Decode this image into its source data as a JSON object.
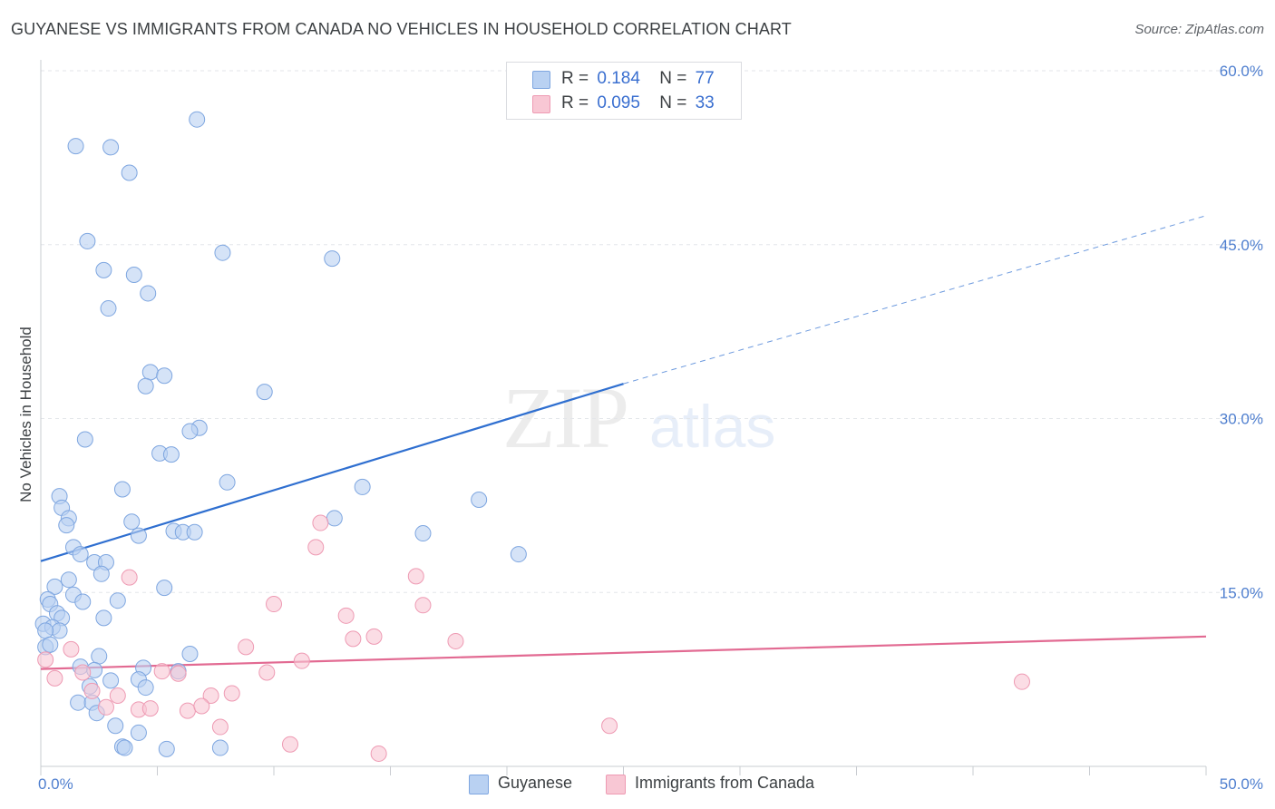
{
  "header": {
    "title": "GUYANESE VS IMMIGRANTS FROM CANADA NO VEHICLES IN HOUSEHOLD CORRELATION CHART",
    "source": "Source: ZipAtlas.com"
  },
  "watermark": {
    "zip": "ZIP",
    "atlas": "atlas"
  },
  "legend": {
    "rows": [
      {
        "r_label": "R =",
        "r_value": "0.184",
        "n_label": "N =",
        "n_value": "77"
      },
      {
        "r_label": "R =",
        "r_value": "0.095",
        "n_label": "N =",
        "n_value": "33"
      }
    ]
  },
  "colors": {
    "series1_fill": "#b9d1f2",
    "series1_stroke": "#7ea6e0",
    "series1_line": "#2f6fd0",
    "series2_fill": "#f8c7d4",
    "series2_stroke": "#ee9ab3",
    "series2_line": "#e26a92"
  },
  "chart_data": {
    "type": "scatter",
    "title": "GUYANESE VS IMMIGRANTS FROM CANADA NO VEHICLES IN HOUSEHOLD CORRELATION CHART",
    "xlabel": "",
    "ylabel": "No Vehicles in Household",
    "xlim": [
      0,
      50
    ],
    "ylim": [
      0,
      60
    ],
    "x_tick_labels": [
      "0.0%",
      "50.0%"
    ],
    "y_ticks": [
      15,
      30,
      45,
      60
    ],
    "y_tick_labels": [
      "15.0%",
      "30.0%",
      "45.0%",
      "60.0%"
    ],
    "grid": true,
    "legend_position": "top-center",
    "series": [
      {
        "name": "Guyanese",
        "R": 0.184,
        "N": 77,
        "trend": {
          "x0": 0,
          "y0": 17.7,
          "x1": 25,
          "y1": 33.0,
          "dashed_to_x": 50,
          "dashed_to_y": 47.5
        },
        "points": [
          [
            6.7,
            55.8
          ],
          [
            1.5,
            53.5
          ],
          [
            3.0,
            53.4
          ],
          [
            3.8,
            51.2
          ],
          [
            2.0,
            45.3
          ],
          [
            7.8,
            44.3
          ],
          [
            12.5,
            43.8
          ],
          [
            2.7,
            42.8
          ],
          [
            4.0,
            42.4
          ],
          [
            4.6,
            40.8
          ],
          [
            2.9,
            39.5
          ],
          [
            4.7,
            34.0
          ],
          [
            5.3,
            33.7
          ],
          [
            4.5,
            32.8
          ],
          [
            9.6,
            32.3
          ],
          [
            6.8,
            29.2
          ],
          [
            6.4,
            28.9
          ],
          [
            1.9,
            28.2
          ],
          [
            5.1,
            27.0
          ],
          [
            5.6,
            26.9
          ],
          [
            8.0,
            24.5
          ],
          [
            13.8,
            24.1
          ],
          [
            3.5,
            23.9
          ],
          [
            0.8,
            23.3
          ],
          [
            18.8,
            23.0
          ],
          [
            0.9,
            22.3
          ],
          [
            1.2,
            21.4
          ],
          [
            12.6,
            21.4
          ],
          [
            3.9,
            21.1
          ],
          [
            1.1,
            20.8
          ],
          [
            5.7,
            20.3
          ],
          [
            6.1,
            20.2
          ],
          [
            6.6,
            20.2
          ],
          [
            16.4,
            20.1
          ],
          [
            4.2,
            19.9
          ],
          [
            1.4,
            18.9
          ],
          [
            20.5,
            18.3
          ],
          [
            1.7,
            18.3
          ],
          [
            2.3,
            17.6
          ],
          [
            2.8,
            17.6
          ],
          [
            2.6,
            16.6
          ],
          [
            1.2,
            16.1
          ],
          [
            0.6,
            15.5
          ],
          [
            5.3,
            15.4
          ],
          [
            1.4,
            14.8
          ],
          [
            0.3,
            14.4
          ],
          [
            3.3,
            14.3
          ],
          [
            1.8,
            14.2
          ],
          [
            0.4,
            14.0
          ],
          [
            0.7,
            13.2
          ],
          [
            0.9,
            12.8
          ],
          [
            2.7,
            12.8
          ],
          [
            0.1,
            12.3
          ],
          [
            0.5,
            12.0
          ],
          [
            0.8,
            11.7
          ],
          [
            0.2,
            11.7
          ],
          [
            0.2,
            10.3
          ],
          [
            6.4,
            9.7
          ],
          [
            2.5,
            9.5
          ],
          [
            1.7,
            8.6
          ],
          [
            4.4,
            8.5
          ],
          [
            2.3,
            8.3
          ],
          [
            5.9,
            8.2
          ],
          [
            4.2,
            7.5
          ],
          [
            3.0,
            7.4
          ],
          [
            2.1,
            6.9
          ],
          [
            4.5,
            6.8
          ],
          [
            1.6,
            5.5
          ],
          [
            2.2,
            5.5
          ],
          [
            2.4,
            4.6
          ],
          [
            3.2,
            3.5
          ],
          [
            4.2,
            2.9
          ],
          [
            3.5,
            1.7
          ],
          [
            3.6,
            1.6
          ],
          [
            5.4,
            1.5
          ],
          [
            7.7,
            1.6
          ],
          [
            0.4,
            10.5
          ]
        ]
      },
      {
        "name": "Immigrants from Canada",
        "R": 0.095,
        "N": 33,
        "trend": {
          "x0": 0,
          "y0": 8.4,
          "x1": 50,
          "y1": 11.2
        },
        "points": [
          [
            0.2,
            9.2
          ],
          [
            12.0,
            21.0
          ],
          [
            11.8,
            18.9
          ],
          [
            16.1,
            16.4
          ],
          [
            3.8,
            16.3
          ],
          [
            10.0,
            14.0
          ],
          [
            16.4,
            13.9
          ],
          [
            13.1,
            13.0
          ],
          [
            13.4,
            11.0
          ],
          [
            14.3,
            11.2
          ],
          [
            17.8,
            10.8
          ],
          [
            1.3,
            10.1
          ],
          [
            8.8,
            10.3
          ],
          [
            11.2,
            9.1
          ],
          [
            1.8,
            8.1
          ],
          [
            5.2,
            8.2
          ],
          [
            5.9,
            8.0
          ],
          [
            9.7,
            8.1
          ],
          [
            0.6,
            7.6
          ],
          [
            2.2,
            6.5
          ],
          [
            3.3,
            6.1
          ],
          [
            7.3,
            6.1
          ],
          [
            8.2,
            6.3
          ],
          [
            42.1,
            7.3
          ],
          [
            2.8,
            5.1
          ],
          [
            4.2,
            4.9
          ],
          [
            4.7,
            5.0
          ],
          [
            6.3,
            4.8
          ],
          [
            6.9,
            5.2
          ],
          [
            7.7,
            3.4
          ],
          [
            24.4,
            3.5
          ],
          [
            10.7,
            1.9
          ],
          [
            14.5,
            1.1
          ]
        ]
      }
    ]
  }
}
